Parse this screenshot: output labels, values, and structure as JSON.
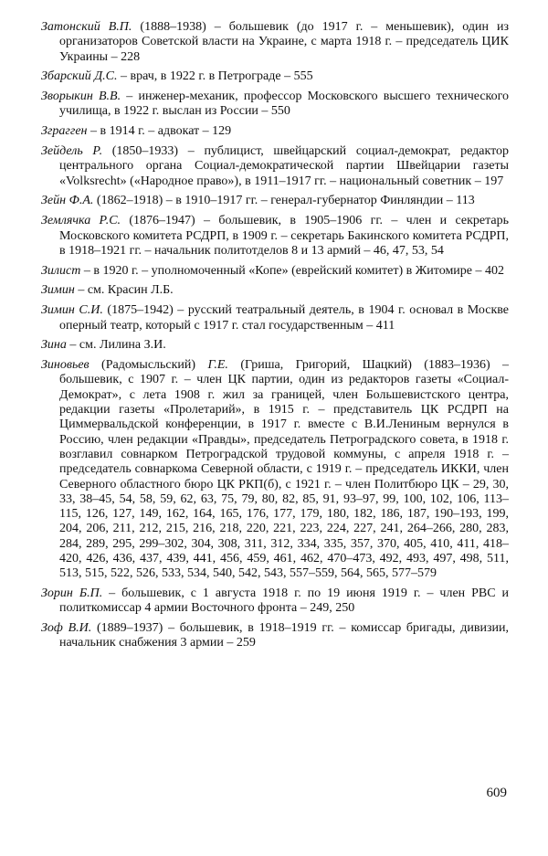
{
  "entries": [
    {
      "name": "Затонский В.П.",
      "text": "(1888–1938) – большевик (до 1917 г. – меньшевик), один из организаторов Советской власти на Украине, с марта 1918 г. – председатель ЦИК Украины – 228"
    },
    {
      "name": "Збарский Д.С.",
      "text": "– врач, в 1922 г. в Петрограде – 555"
    },
    {
      "name": "Зворыкин В.В.",
      "text": "– инженер-механик, профессор Московского высшего технического училища, в 1922 г. выслан из России – 550"
    },
    {
      "name": "Зграгген",
      "text": "– в 1914 г. – адвокат – 129"
    },
    {
      "name": "Зейдель Р.",
      "text": "(1850–1933) – публицист, швейцарский социал-демократ, редактор центрального органа Социал-демократической партии Швейцарии газеты «Volksrecht» («Народное право»), в 1911–1917 гг. – национальный советник – 197"
    },
    {
      "name": "Зейн Ф.А.",
      "text": "(1862–1918) – в 1910–1917 гг. – генерал-губернатор Финляндии – 113"
    },
    {
      "name": "Землячка Р.С.",
      "text": "(1876–1947) – большевик, в 1905–1906 гг. – член и секретарь Московского комитета РСДРП, в 1909 г. – секретарь Бакинского комитета РСДРП, в 1918–1921 гг. – начальник политотделов 8 и 13 армий – 46, 47, 53, 54"
    },
    {
      "name": "Зилист",
      "text": "– в 1920 г. – уполномоченный «Копе» (еврейский комитет) в Житомире – 402"
    },
    {
      "name": "Зимин",
      "text": "– см. Красин Л.Б."
    },
    {
      "name": "Зимин С.И.",
      "text": "(1875–1942) – русский театральный деятель, в 1904 г. основал в Москве оперный театр, который с 1917 г. стал государственным – 411"
    },
    {
      "name": "Зина",
      "text": "– см. Лилина З.И."
    },
    {
      "name": "Зиновьев",
      "alias": "(Радомысльский)",
      "initials": "Г.Е.",
      "text": "(Гриша, Григорий, Шацкий) (1883–1936) – большевик, с 1907 г. – член ЦК партии, один из редакторов газеты «Социал-Демократ», с лета 1908 г. жил за границей, член Большевистского центра, редакции газеты «Пролетарий», в 1915 г. – представитель ЦК РСДРП на Циммервальдской конференции, в 1917 г. вместе с В.И.Лениным вернулся в Россию, член редакции «Правды», председатель Петроградского совета, в 1918 г. возглавил совнарком Петроградской трудовой коммуны, с апреля 1918 г. – председатель совнаркома Северной области, с 1919 г. – председатель ИККИ, член Северного областного бюро ЦК РКП(б), с 1921 г. – член Политбюро ЦК – 29, 30, 33, 38–45, 54, 58, 59, 62, 63, 75, 79, 80, 82, 85, 91, 93–97, 99, 100, 102, 106, 113–115, 126, 127, 149, 162, 164, 165, 176, 177, 179, 180, 182, 186, 187, 190–193, 199, 204, 206, 211, 212, 215, 216, 218, 220, 221, 223, 224, 227, 241, 264–266, 280, 283, 284, 289, 295, 299–302, 304, 308, 311, 312, 334, 335, 357, 370, 405, 410, 411, 418–420, 426, 436, 437, 439, 441, 456, 459, 461, 462, 470–473, 492, 493, 497, 498, 511, 513, 515, 522, 526, 533, 534, 540, 542, 543, 557–559, 564, 565, 577–579"
    },
    {
      "name": "Зорин Б.П.",
      "text": "– большевик, с 1 августа 1918 г. по 19 июня 1919 г. – член РВС и политкомиссар 4 армии Восточного фронта – 249, 250"
    },
    {
      "name": "Зоф В.И.",
      "text": "(1889–1937) – большевик, в 1918–1919 гг. – комиссар бригады, дивизии, начальник снабжения 3 армии – 259"
    }
  ],
  "page_number": "609"
}
